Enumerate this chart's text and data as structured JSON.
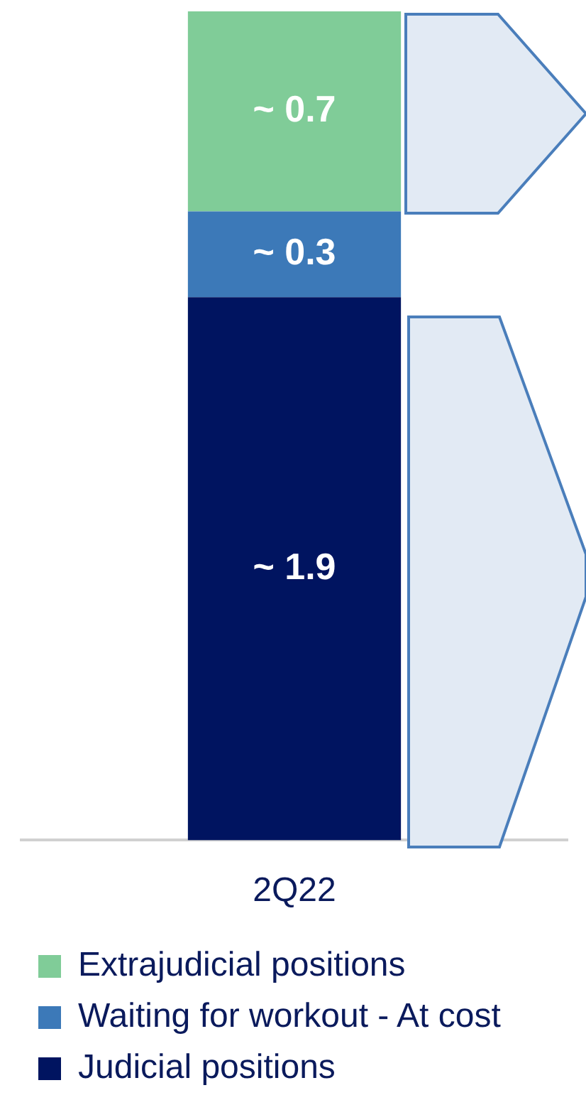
{
  "chart_data": {
    "type": "bar",
    "stacked": true,
    "categories": [
      "2Q22"
    ],
    "legend": "bottom",
    "series": [
      {
        "name": "Judicial positions",
        "color": "#001460",
        "values": [
          1.9
        ],
        "value_labels": [
          "~ 1.9"
        ]
      },
      {
        "name": "Waiting for workout - At cost",
        "color": "#3c79b8",
        "values": [
          0.3
        ],
        "value_labels": [
          "~ 0.3"
        ]
      },
      {
        "name": "Extrajudicial positions",
        "color": "#80cc98",
        "values": [
          0.7
        ],
        "value_labels": [
          "~ 0.7"
        ]
      }
    ]
  }
}
